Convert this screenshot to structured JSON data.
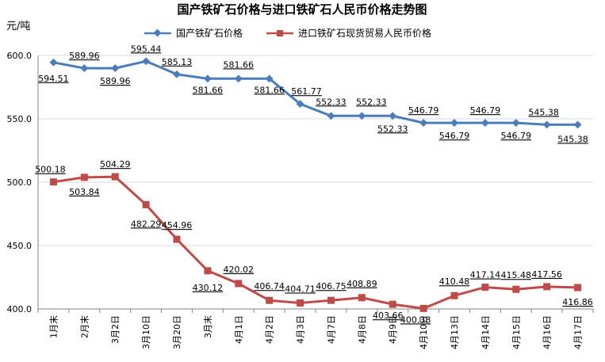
{
  "chart_data": {
    "type": "line",
    "title": "国产铁矿石价格与进口铁矿石人民币价格走势图",
    "ylabel": "元/吨",
    "xlabel": "",
    "ylim": [
      400,
      600
    ],
    "yticks": [
      "600.0",
      "550.0",
      "500.0",
      "450.0",
      "400.0"
    ],
    "grid": true,
    "legend_position": "top",
    "categories": [
      "1月末",
      "2月末",
      "3月2日",
      "3月10日",
      "3月20日",
      "3月末",
      "4月1日",
      "4月2日",
      "4月3日",
      "4月7日",
      "4月8日",
      "4月9日",
      "4月10日",
      "4月13日",
      "4月14日",
      "4月15日",
      "4月16日",
      "4月17日"
    ],
    "series": [
      {
        "name": "国产铁矿石价格",
        "color": "#4a7ebb",
        "marker": "diamond",
        "values": [
          594.51,
          589.96,
          589.96,
          595.44,
          585.13,
          581.66,
          581.66,
          581.66,
          561.77,
          552.33,
          552.33,
          552.33,
          546.79,
          546.79,
          546.79,
          546.79,
          545.38,
          545.38
        ],
        "labels": [
          "594.51",
          "589.96",
          "589.96",
          "595.44",
          "585.13",
          "581.66",
          "581.66",
          "581.66",
          "561.77",
          "552.33",
          "552.33",
          "552.33",
          "546.79",
          "546.79",
          "546.79",
          "546.79",
          "545.38",
          "545.38"
        ]
      },
      {
        "name": "进口铁矿石现货贸易人民币价格",
        "color": "#be4b48",
        "marker": "square",
        "values": [
          500.18,
          503.84,
          504.29,
          482.29,
          454.96,
          430.12,
          420.02,
          406.74,
          404.71,
          406.75,
          408.89,
          403.66,
          400.38,
          410.48,
          417.14,
          415.48,
          417.56,
          416.86
        ],
        "labels": [
          "500.18",
          "503.84",
          "504.29",
          "482.29",
          "454.96",
          "430.12",
          "420.02",
          "406.74",
          "404.71",
          "406.75",
          "408.89",
          "403.66",
          "400.38",
          "410.48",
          "417.14",
          "415.48",
          "417.56",
          "416.86"
        ]
      }
    ]
  }
}
